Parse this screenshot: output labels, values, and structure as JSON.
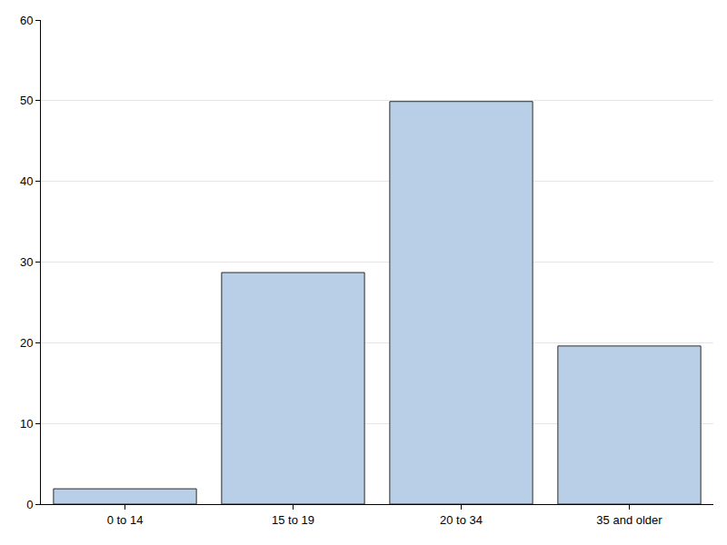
{
  "chart_data": {
    "type": "bar",
    "categories": [
      "0 to 14",
      "15 to 19",
      "20 to 34",
      "35 and older"
    ],
    "values": [
      1.9,
      28.7,
      49.9,
      19.6
    ],
    "color": "#b9cfe7",
    "ylim": [
      0,
      60
    ],
    "yticks": [
      0,
      10,
      20,
      30,
      40,
      50,
      60
    ],
    "grid": true
  }
}
